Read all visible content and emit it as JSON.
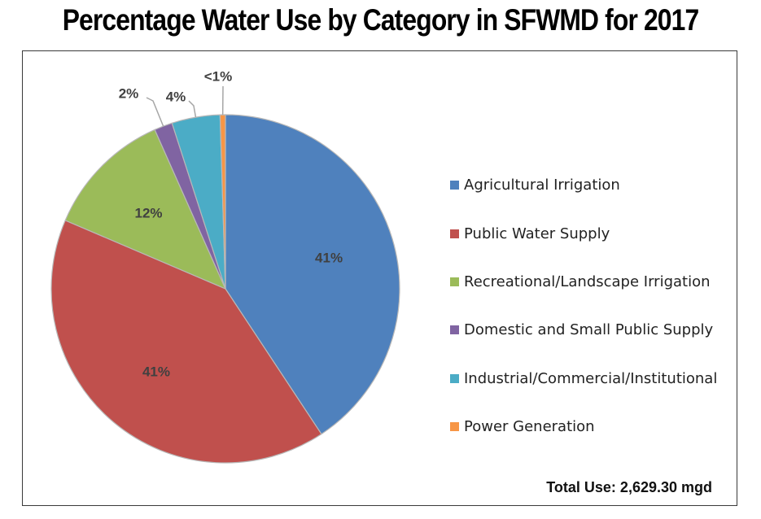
{
  "chart_data": {
    "type": "pie",
    "title": "Percentage Water Use by Category in SFWMD for 2017",
    "categories": [
      "Agricultural Irrigation",
      "Public Water Supply",
      "Recreational/Landscape Irrigation",
      "Domestic and Small Public Supply",
      "Industrial/Commercial/Institutional",
      "Power Generation"
    ],
    "values": [
      41.0,
      41.0,
      12.0,
      1.7,
      4.5,
      0.5
    ],
    "data_labels": [
      "41%",
      "41%",
      "12%",
      "2%",
      "4%",
      "<1%"
    ],
    "colors": [
      "#4F81BD",
      "#C0504D",
      "#9BBB59",
      "#8064A2",
      "#4BACC6",
      "#F79646"
    ],
    "legend_position": "right",
    "total_label": "Total Use: 2,629.30 mgd"
  }
}
